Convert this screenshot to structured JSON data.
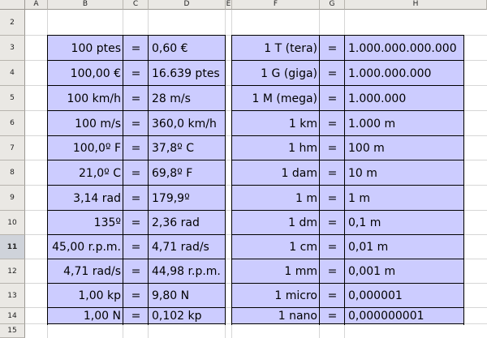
{
  "columns": [
    "A",
    "B",
    "C",
    "D",
    "E",
    "F",
    "G",
    "H"
  ],
  "rows": [
    "2",
    "3",
    "4",
    "5",
    "6",
    "7",
    "8",
    "9",
    "10",
    "11",
    "12",
    "13",
    "14",
    "15"
  ],
  "selected_row": "11",
  "colors": {
    "table_fill": "#ccccff",
    "header_bg": "#eae8e4",
    "active_header_bg": "#cfd3da"
  },
  "left_table": [
    {
      "from": "100 ptes",
      "eq": "=",
      "to": "0,60 €"
    },
    {
      "from": "100,00 €",
      "eq": "=",
      "to": "16.639 ptes"
    },
    {
      "from": "100 km/h",
      "eq": "=",
      "to": "28 m/s"
    },
    {
      "from": "100 m/s",
      "eq": "=",
      "to": "360,0 km/h"
    },
    {
      "from": "100,0º F",
      "eq": "=",
      "to": "37,8º C"
    },
    {
      "from": "21,0º C",
      "eq": "=",
      "to": "69,8º F"
    },
    {
      "from": "3,14 rad",
      "eq": "=",
      "to": "179,9º"
    },
    {
      "from": "135º",
      "eq": "=",
      "to": "2,36 rad"
    },
    {
      "from": "45,00 r.p.m.",
      "eq": "=",
      "to": "4,71 rad/s"
    },
    {
      "from": "4,71 rad/s",
      "eq": "=",
      "to": "44,98 r.p.m."
    },
    {
      "from": "1,00 kp",
      "eq": "=",
      "to": "9,80 N"
    },
    {
      "from": "1,00 N",
      "eq": "=",
      "to": "0,102 kp"
    }
  ],
  "right_table": [
    {
      "unit": "1 T (tera)",
      "eq": "=",
      "value": "1.000.000.000.000"
    },
    {
      "unit": "1 G (giga)",
      "eq": "=",
      "value": "1.000.000.000"
    },
    {
      "unit": "1 M (mega)",
      "eq": "=",
      "value": "1.000.000"
    },
    {
      "unit": "1 km",
      "eq": "=",
      "value": "1.000 m"
    },
    {
      "unit": "1 hm",
      "eq": "=",
      "value": "100 m"
    },
    {
      "unit": "1 dam",
      "eq": "=",
      "value": "10 m"
    },
    {
      "unit": "1 m",
      "eq": "=",
      "value": "1 m"
    },
    {
      "unit": "1 dm",
      "eq": "=",
      "value": "0,1 m"
    },
    {
      "unit": "1 cm",
      "eq": "=",
      "value": "0,01 m"
    },
    {
      "unit": "1 mm",
      "eq": "=",
      "value": "0,001 m"
    },
    {
      "unit": "1 micro",
      "eq": "=",
      "value": "0,000001"
    },
    {
      "unit": "1 nano",
      "eq": "=",
      "value": "0,000000001"
    }
  ]
}
